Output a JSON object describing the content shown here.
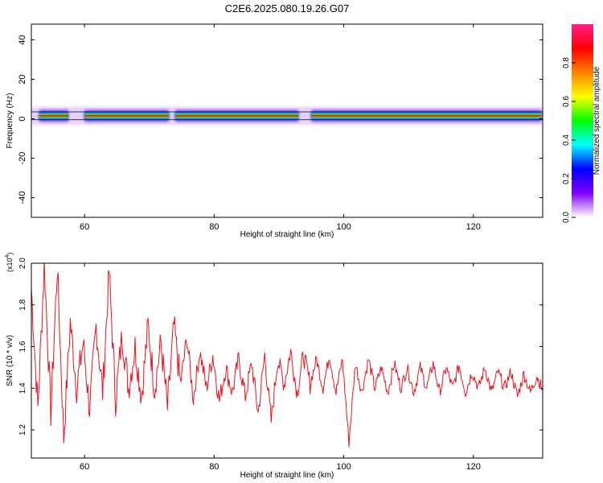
{
  "title": "C2E6.2025.080.19.26.G07",
  "colors": {
    "line": "#e8141e",
    "axis": "#000000",
    "colorbar_stops": [
      "#ffffff",
      "#8000ff",
      "#0000ff",
      "#00ffff",
      "#00ff00",
      "#ffff00",
      "#ff8000",
      "#ff0000",
      "#ff1e8c"
    ]
  },
  "chart_data": [
    {
      "type": "heatmap",
      "xlabel": "Height of straight line (km)",
      "ylabel": "Frequency (Hz)",
      "xlim": [
        51.8,
        130.7
      ],
      "ylim": [
        -50,
        48
      ],
      "x_ticks": [
        60,
        80,
        100,
        120
      ],
      "y_ticks": [
        -40,
        -20,
        0,
        20,
        40
      ],
      "band": {
        "center_frequency_hz": 1.5,
        "reference_lines_hz": [
          -0.5,
          3.5
        ],
        "strong_segments_km": [
          [
            53,
            57.5
          ],
          [
            60,
            73
          ],
          [
            74,
            93
          ],
          [
            95,
            130.5
          ]
        ]
      },
      "colorbar": {
        "label": "Normalized spectral amplitude",
        "range": [
          0.0,
          1.0
        ],
        "ticks": [
          "0.0",
          "0.2",
          "0.4",
          "0.6",
          "0.8"
        ]
      }
    },
    {
      "type": "line",
      "xlabel": "Height of straight line (km)",
      "ylabel": "SNR (10 * v/v)",
      "y_multiplier": "(x10",
      "y_multiplier_exp": "4",
      "y_multiplier_close": ")",
      "xlim": [
        51.8,
        130.7
      ],
      "ylim": [
        1.065,
        2.0
      ],
      "x_ticks": [
        60,
        80,
        100,
        120
      ],
      "y_ticks": [
        1.2,
        1.4,
        1.6,
        1.8,
        2.0
      ],
      "y_tick_labels": [
        "1.2",
        "1.4",
        "1.6",
        "1.8",
        "2.0"
      ],
      "series": [
        {
          "x": [
            51.8,
            52.8,
            53.8,
            54.8,
            55.8,
            56.8,
            57.8,
            58.8,
            59.8,
            60.8,
            61.8,
            62.8,
            63.8,
            64.8,
            65.8,
            66.8,
            67.8,
            68.8,
            69.8,
            70.8,
            71.8,
            72.8,
            73.8,
            74.8,
            75.8,
            76.8,
            77.8,
            78.8,
            79.8,
            80.8,
            81.8,
            82.8,
            83.8,
            84.8,
            85.8,
            86.8,
            87.8,
            88.8,
            89.8,
            90.8,
            91.8,
            92.8,
            93.8,
            94.8,
            95.8,
            96.8,
            97.8,
            98.8,
            99.8,
            100.8,
            101.8,
            102.8,
            103.8,
            104.8,
            105.8,
            106.8,
            107.8,
            108.8,
            109.8,
            110.8,
            111.8,
            112.8,
            113.8,
            114.8,
            115.8,
            116.8,
            117.8,
            118.8,
            119.8,
            120.8,
            121.8,
            122.8,
            123.8,
            124.8,
            125.8,
            126.8,
            127.8,
            128.8,
            129.8,
            130.7
          ],
          "y": [
            1.88,
            1.3,
            2.0,
            1.28,
            1.98,
            1.16,
            1.72,
            1.4,
            1.62,
            1.3,
            1.7,
            1.38,
            1.96,
            1.34,
            1.66,
            1.4,
            1.6,
            1.36,
            1.7,
            1.4,
            1.62,
            1.3,
            1.7,
            1.42,
            1.64,
            1.35,
            1.58,
            1.4,
            1.56,
            1.34,
            1.5,
            1.38,
            1.54,
            1.36,
            1.52,
            1.28,
            1.56,
            1.24,
            1.54,
            1.42,
            1.58,
            1.38,
            1.56,
            1.42,
            1.54,
            1.4,
            1.56,
            1.38,
            1.54,
            1.14,
            1.52,
            1.38,
            1.54,
            1.4,
            1.5,
            1.38,
            1.52,
            1.4,
            1.5,
            1.38,
            1.5,
            1.4,
            1.52,
            1.38,
            1.5,
            1.4,
            1.51,
            1.38,
            1.48,
            1.4,
            1.5,
            1.38,
            1.48,
            1.4,
            1.48,
            1.36,
            1.47,
            1.38,
            1.46,
            1.39
          ]
        }
      ]
    }
  ]
}
